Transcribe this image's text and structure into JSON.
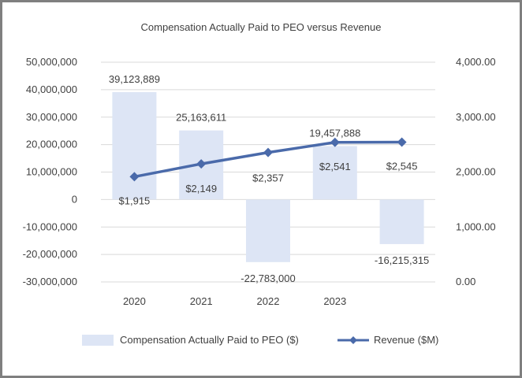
{
  "chart_data": {
    "type": "bar+line",
    "title": "Compensation Actually Paid to PEO versus Revenue",
    "categories": [
      "2020",
      "2021",
      "2022",
      "2023",
      ""
    ],
    "series": [
      {
        "name": "Compensation Actually Paid to PEO ($)",
        "type": "bar",
        "axis": "left",
        "values": [
          39123889,
          25163611,
          -22783000,
          19457888,
          -16215315
        ],
        "labels": [
          "39,123,889",
          "25,163,611",
          "-22,783,000",
          "19,457,888",
          "-16,215,315"
        ]
      },
      {
        "name": "Revenue ($M)",
        "type": "line",
        "axis": "right",
        "values": [
          1915,
          2149,
          2357,
          2541,
          2545
        ],
        "labels": [
          "$1,915",
          "$2,149",
          "$2,357",
          "$2,541",
          "$2,545"
        ]
      }
    ],
    "left_axis": {
      "ylim": [
        -30000000,
        50000000
      ],
      "ticks": [
        50000000,
        40000000,
        30000000,
        20000000,
        10000000,
        0,
        -10000000,
        -20000000,
        -30000000
      ],
      "tick_labels": [
        "50,000,000",
        "40,000,000",
        "30,000,000",
        "20,000,000",
        "10,000,000",
        "0",
        "-10,000,000",
        "-20,000,000",
        "-30,000,000"
      ]
    },
    "right_axis": {
      "ylim": [
        0,
        4000
      ],
      "ticks": [
        4000,
        3000,
        2000,
        1000,
        0
      ],
      "tick_labels": [
        "4,000.00",
        "3,000.00",
        "2,000.00",
        "1,000.00",
        "0.00"
      ]
    },
    "grid": true,
    "legend_position": "bottom",
    "colors": {
      "bar": "#dde5f5",
      "line": "#4a6aaa",
      "grid": "#d9d9d9",
      "text": "#404040",
      "border": "#7f7f7f"
    }
  }
}
